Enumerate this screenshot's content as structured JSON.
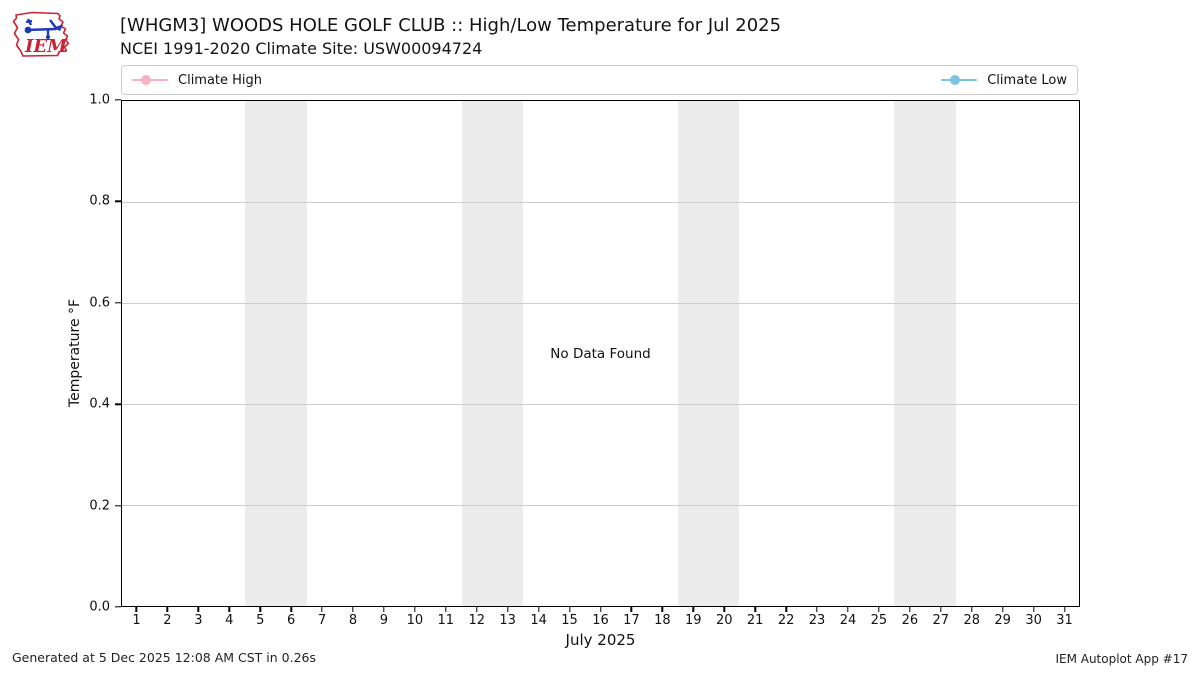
{
  "header": {
    "logo_text": "IEM",
    "title": "[WHGM3] WOODS HOLE GOLF CLUB :: High/Low Temperature for Jul 2025",
    "subtitle": "NCEI 1991-2020 Climate Site: USW00094724"
  },
  "legend": {
    "entries": [
      {
        "label": "Climate High",
        "color": "#f8b1c0"
      },
      {
        "label": "Climate Low",
        "color": "#7cc3e2"
      }
    ]
  },
  "chart_data": {
    "type": "line",
    "title": "[WHGM3] WOODS HOLE GOLF CLUB :: High/Low Temperature for Jul 2025",
    "subtitle": "NCEI 1991-2020 Climate Site: USW00094724",
    "xlabel": "July 2025",
    "ylabel": "Temperature °F",
    "xlim": [
      0.5,
      31.5
    ],
    "ylim": [
      0.0,
      1.0
    ],
    "grid": "horizontal",
    "legend_position": "top, spanning plot width (high left, low right)",
    "x_tick_labels": [
      "1",
      "2",
      "3",
      "4",
      "5",
      "6",
      "7",
      "8",
      "9",
      "10",
      "11",
      "12",
      "13",
      "14",
      "15",
      "16",
      "17",
      "18",
      "19",
      "20",
      "21",
      "22",
      "23",
      "24",
      "25",
      "26",
      "27",
      "28",
      "29",
      "30",
      "31"
    ],
    "y_tick_labels": [
      "1.0",
      "0.8",
      "0.6",
      "0.4",
      "0.2",
      "0.0"
    ],
    "series": [
      {
        "name": "Climate High",
        "color": "#f8b1c0",
        "marker": "circle",
        "values": []
      },
      {
        "name": "Climate Low",
        "color": "#7cc3e2",
        "marker": "circle",
        "values": []
      }
    ],
    "no_data_message": "No Data Found",
    "weekend_shading_days": [
      [
        5,
        6
      ],
      [
        12,
        13
      ],
      [
        19,
        20
      ],
      [
        26,
        27
      ]
    ],
    "days_in_month": 31
  },
  "footer": {
    "generated": "Generated at 5 Dec 2025 12:08 AM CST in 0.26s",
    "app": "IEM Autoplot App #17"
  }
}
